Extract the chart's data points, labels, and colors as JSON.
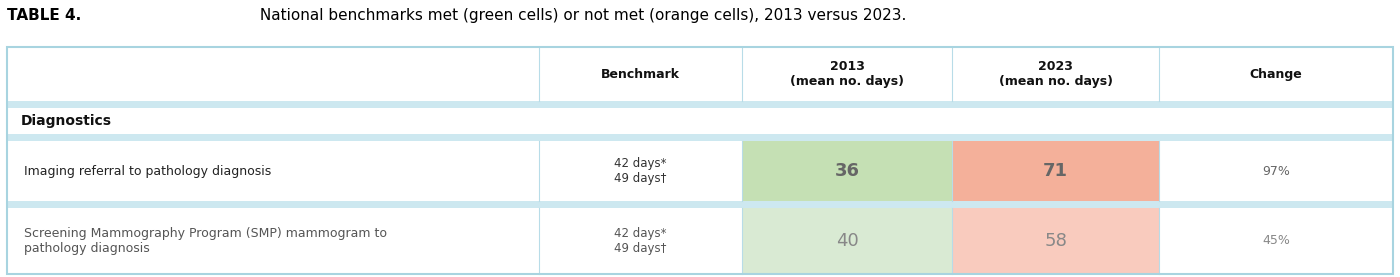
{
  "title_bold": "TABLE 4.",
  "title_normal": " National benchmarks met (green cells) or not met (orange cells), 2013 versus 2023.",
  "table_bg": "#cde8f0",
  "header_bg": "#ffffff",
  "section_bg": "#ffffff",
  "row_bg": "#ffffff",
  "green_cell_row1": "#c5e0b4",
  "orange_cell_row1": "#f4b09a",
  "green_cell_row2": "#d9ead3",
  "orange_cell_row2": "#f9cbbe",
  "col_headers": [
    "Benchmark",
    "2013\n(mean no. days)",
    "2023\n(mean no. days)",
    "Change"
  ],
  "section_label": "Diagnostics",
  "rows": [
    {
      "label": "Imaging referral to pathology diagnosis",
      "benchmark_line1": "42 days*",
      "benchmark_line2": "49 days†",
      "val_2013": "36",
      "val_2023": "71",
      "change": "97%",
      "color_2013": "#c5e0b4",
      "color_2023": "#f4b09a",
      "val_color": "#666666",
      "change_color": "#666666"
    },
    {
      "label_line1": "Screening Mammography Program (SMP) mammogram to",
      "label_line2": "pathology diagnosis",
      "benchmark_line1": "42 days*",
      "benchmark_line2": "49 days†",
      "val_2013": "40",
      "val_2023": "58",
      "change": "45%",
      "color_2013": "#d9ead3",
      "color_2023": "#f9cbbe",
      "val_color": "#888888",
      "change_color": "#888888"
    }
  ],
  "outer_border": "#a8d4e0",
  "inner_line": "#b8dce8",
  "gap_color": "#cde8f0"
}
